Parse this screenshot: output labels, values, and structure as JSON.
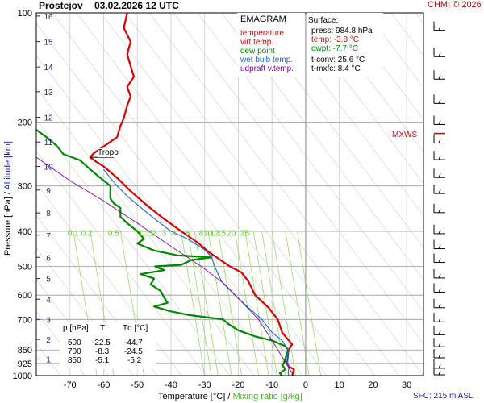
{
  "header": {
    "station": "Prostejov",
    "datetime": "03.02.2026 12 UTC",
    "copyright": "CHMI © 2026"
  },
  "legend": {
    "title": "EMAGRAM",
    "items": [
      {
        "label": "temperature",
        "color": "#dd0000"
      },
      {
        "label": "virt.temp.",
        "color": "#dd0000"
      },
      {
        "label": "dew point",
        "color": "#008800"
      },
      {
        "label": "wet bulb temp.",
        "color": "#1a64c8"
      },
      {
        "label": "udpraft v.temp.",
        "color": "#8800aa"
      }
    ]
  },
  "surface": {
    "title": "Surface:",
    "press": "press: 984.8 hPa",
    "temp": "temp: -3.8 °C",
    "dwpt": "dwpt: -7.7 °C",
    "tconv": "t-conv: 25.6 °C",
    "tmxfc": "t-mxfc: 8.4 °C"
  },
  "station_table": {
    "headers": [
      "p [hPa]",
      "T",
      "Td [°C]"
    ],
    "rows": [
      [
        "500",
        "-22.5",
        "-44.7"
      ],
      [
        "700",
        "-8.3",
        "-24.5"
      ],
      [
        "850",
        "-5.1",
        "-5.2"
      ]
    ]
  },
  "labels": {
    "tropo": "Tropo",
    "mxws": "MXWS",
    "sfc": "SFC: 215 m ASL",
    "xlabel_temp": "Temperature [°C]",
    "xlabel_sep": "/",
    "xlabel_mix": "Mixing ratio [g/kg]",
    "ylabel_press": "Pressure [hPa]",
    "ylabel_sep": "/",
    "ylabel_alt": "Altitude [km]"
  },
  "colors": {
    "temperature": "#dd0000",
    "dewpoint": "#008800",
    "wetbulb": "#1a64c8",
    "updraft": "#8800aa",
    "isotherm": "#cccccc",
    "dry_adiabat": "#d4d4d4",
    "mixing_ratio": "#99dd66",
    "mixing_ratio_text": "#66cc33",
    "altitude_text": "#1a1aaa",
    "zero_line": "#999999"
  },
  "chart_data": {
    "type": "line",
    "title": "EMAGRAM",
    "xlabel": "Temperature [°C] / Mixing ratio [g/kg]",
    "ylabel": "Pressure [hPa] / Altitude [km]",
    "xlim": [
      -80,
      35
    ],
    "ylim": [
      1000,
      100
    ],
    "yscale": "log",
    "x_ticks": [
      -70,
      -60,
      -50,
      -40,
      -30,
      -20,
      -10,
      0,
      10,
      20,
      30
    ],
    "pressure_ticks": [
      100,
      200,
      300,
      400,
      500,
      600,
      700,
      850,
      925,
      1000
    ],
    "altitude_ticks": [
      {
        "label": "1",
        "p": 900
      },
      {
        "label": "2",
        "p": 795
      },
      {
        "label": "3",
        "p": 700
      },
      {
        "label": "4",
        "p": 616
      },
      {
        "label": "5",
        "p": 540
      },
      {
        "label": "6",
        "p": 472
      },
      {
        "label": "7",
        "p": 410
      },
      {
        "label": "8",
        "p": 356
      },
      {
        "label": "9",
        "p": 308
      },
      {
        "label": "10",
        "p": 265
      },
      {
        "label": "11",
        "p": 227
      },
      {
        "label": "12",
        "p": 194
      },
      {
        "label": "13",
        "p": 165
      },
      {
        "label": "14",
        "p": 141
      },
      {
        "label": "15",
        "p": 120
      },
      {
        "label": "16",
        "p": 102
      }
    ],
    "mixing_ratio_labels": [
      "0.1",
      "0.2",
      "0.5",
      "1",
      "1.5",
      "2",
      "3",
      "4",
      "6",
      "8",
      "10",
      "12",
      "15",
      "20",
      "25"
    ],
    "mixing_ratio_lines": [
      {
        "label": "0.1",
        "x_top": -69,
        "x_bottom": -62
      },
      {
        "label": "0.2",
        "x_top": -64,
        "x_bottom": -57
      },
      {
        "label": "0.5",
        "x_top": -55,
        "x_bottom": -48
      },
      {
        "label": "1",
        "x_top": -37,
        "x_bottom": -30
      },
      {
        "label": "1.5",
        "x_top": -35,
        "x_bottom": -28
      },
      {
        "label": "2",
        "x_top": -33,
        "x_bottom": -26
      },
      {
        "label": "3",
        "x_top": -29,
        "x_bottom": -22
      },
      {
        "label": "4",
        "x_top": -26,
        "x_bottom": -19
      },
      {
        "label": "6",
        "x_top": -21,
        "x_bottom": -14
      },
      {
        "label": "8",
        "x_top": -18,
        "x_bottom": -11
      },
      {
        "label": "10",
        "x_top": -15.5,
        "x_bottom": -8.5
      },
      {
        "label": "12",
        "x_top": -13,
        "x_bottom": -6
      },
      {
        "label": "15",
        "x_top": -10,
        "x_bottom": -3
      },
      {
        "label": "20",
        "x_top": -6,
        "x_bottom": 1
      },
      {
        "label": "25",
        "x_top": -2.5,
        "x_bottom": 4.5
      }
    ],
    "series": [
      {
        "name": "temperature",
        "points": [
          [
            -4,
            1000
          ],
          [
            -3.8,
            985
          ],
          [
            -3.5,
            960
          ],
          [
            -5,
            945
          ],
          [
            -5.5,
            925
          ],
          [
            -5.1,
            850
          ],
          [
            -4,
            820
          ],
          [
            -5,
            800
          ],
          [
            -7,
            760
          ],
          [
            -8.3,
            700
          ],
          [
            -11,
            650
          ],
          [
            -15,
            600
          ],
          [
            -17,
            550
          ],
          [
            -19,
            520
          ],
          [
            -22.5,
            500
          ],
          [
            -26,
            475
          ],
          [
            -29,
            455
          ],
          [
            -32,
            430
          ],
          [
            -37,
            400
          ],
          [
            -42,
            370
          ],
          [
            -47,
            340
          ],
          [
            -52,
            310
          ],
          [
            -56,
            285
          ],
          [
            -60,
            265
          ],
          [
            -62,
            258
          ],
          [
            -64,
            250
          ],
          [
            -63,
            244
          ],
          [
            -59,
            230
          ],
          [
            -56,
            220
          ],
          [
            -55,
            205
          ],
          [
            -54,
            195
          ],
          [
            -53,
            180
          ],
          [
            -52,
            170
          ],
          [
            -53,
            160
          ],
          [
            -51,
            150
          ],
          [
            -52,
            140
          ],
          [
            -53,
            130
          ],
          [
            -52,
            120
          ],
          [
            -54,
            110
          ],
          [
            -53,
            100
          ]
        ]
      },
      {
        "name": "dew point",
        "points": [
          [
            -7,
            1000
          ],
          [
            -7.7,
            985
          ],
          [
            -6,
            960
          ],
          [
            -7,
            935
          ],
          [
            -6.5,
            925
          ],
          [
            -5.2,
            850
          ],
          [
            -6,
            830
          ],
          [
            -10,
            800
          ],
          [
            -15,
            780
          ],
          [
            -20,
            750
          ],
          [
            -23,
            720
          ],
          [
            -24.5,
            700
          ],
          [
            -35,
            680
          ],
          [
            -40,
            665
          ],
          [
            -45,
            645
          ],
          [
            -41,
            630
          ],
          [
            -42,
            610
          ],
          [
            -43,
            585
          ],
          [
            -46,
            560
          ],
          [
            -45,
            540
          ],
          [
            -49,
            525
          ],
          [
            -42,
            512
          ],
          [
            -44.7,
            500
          ],
          [
            -37,
            495
          ],
          [
            -34,
            480
          ],
          [
            -28,
            472
          ],
          [
            -38,
            466
          ],
          [
            -45,
            452
          ],
          [
            -48,
            440
          ],
          [
            -50,
            432
          ],
          [
            -48,
            420
          ],
          [
            -50,
            400
          ],
          [
            -53,
            380
          ],
          [
            -55,
            365
          ],
          [
            -55,
            345
          ],
          [
            -57,
            335
          ],
          [
            -58,
            325
          ],
          [
            -58,
            300
          ],
          [
            -62,
            280
          ],
          [
            -64,
            270
          ],
          [
            -67,
            255
          ],
          [
            -72,
            245
          ],
          [
            -74,
            232
          ],
          [
            -77,
            220
          ],
          [
            -80,
            210
          ]
        ]
      },
      {
        "name": "wet bulb temp.",
        "points": [
          [
            -5,
            1000
          ],
          [
            -5.2,
            985
          ],
          [
            -5,
            950
          ],
          [
            -5.5,
            925
          ],
          [
            -5.2,
            850
          ],
          [
            -7,
            800
          ],
          [
            -10,
            760
          ],
          [
            -13,
            700
          ],
          [
            -17,
            650
          ],
          [
            -21,
            600
          ],
          [
            -25,
            550
          ],
          [
            -27,
            500
          ],
          [
            -28,
            470
          ],
          [
            -30,
            450
          ],
          [
            -35,
            420
          ],
          [
            -40,
            400
          ],
          [
            -44,
            375
          ],
          [
            -48,
            350
          ],
          [
            -53,
            320
          ],
          [
            -56,
            300
          ],
          [
            -58,
            285
          ],
          [
            -60,
            270
          ]
        ]
      },
      {
        "name": "udpraft v.temp.",
        "points": [
          [
            -4,
            985
          ],
          [
            -10,
            800
          ],
          [
            -14,
            700
          ],
          [
            -18,
            640
          ],
          [
            -24,
            560
          ],
          [
            -31,
            500
          ],
          [
            -40,
            440
          ],
          [
            -50,
            380
          ],
          [
            -60,
            330
          ],
          [
            -70,
            290
          ],
          [
            -80,
            250
          ]
        ]
      }
    ]
  }
}
